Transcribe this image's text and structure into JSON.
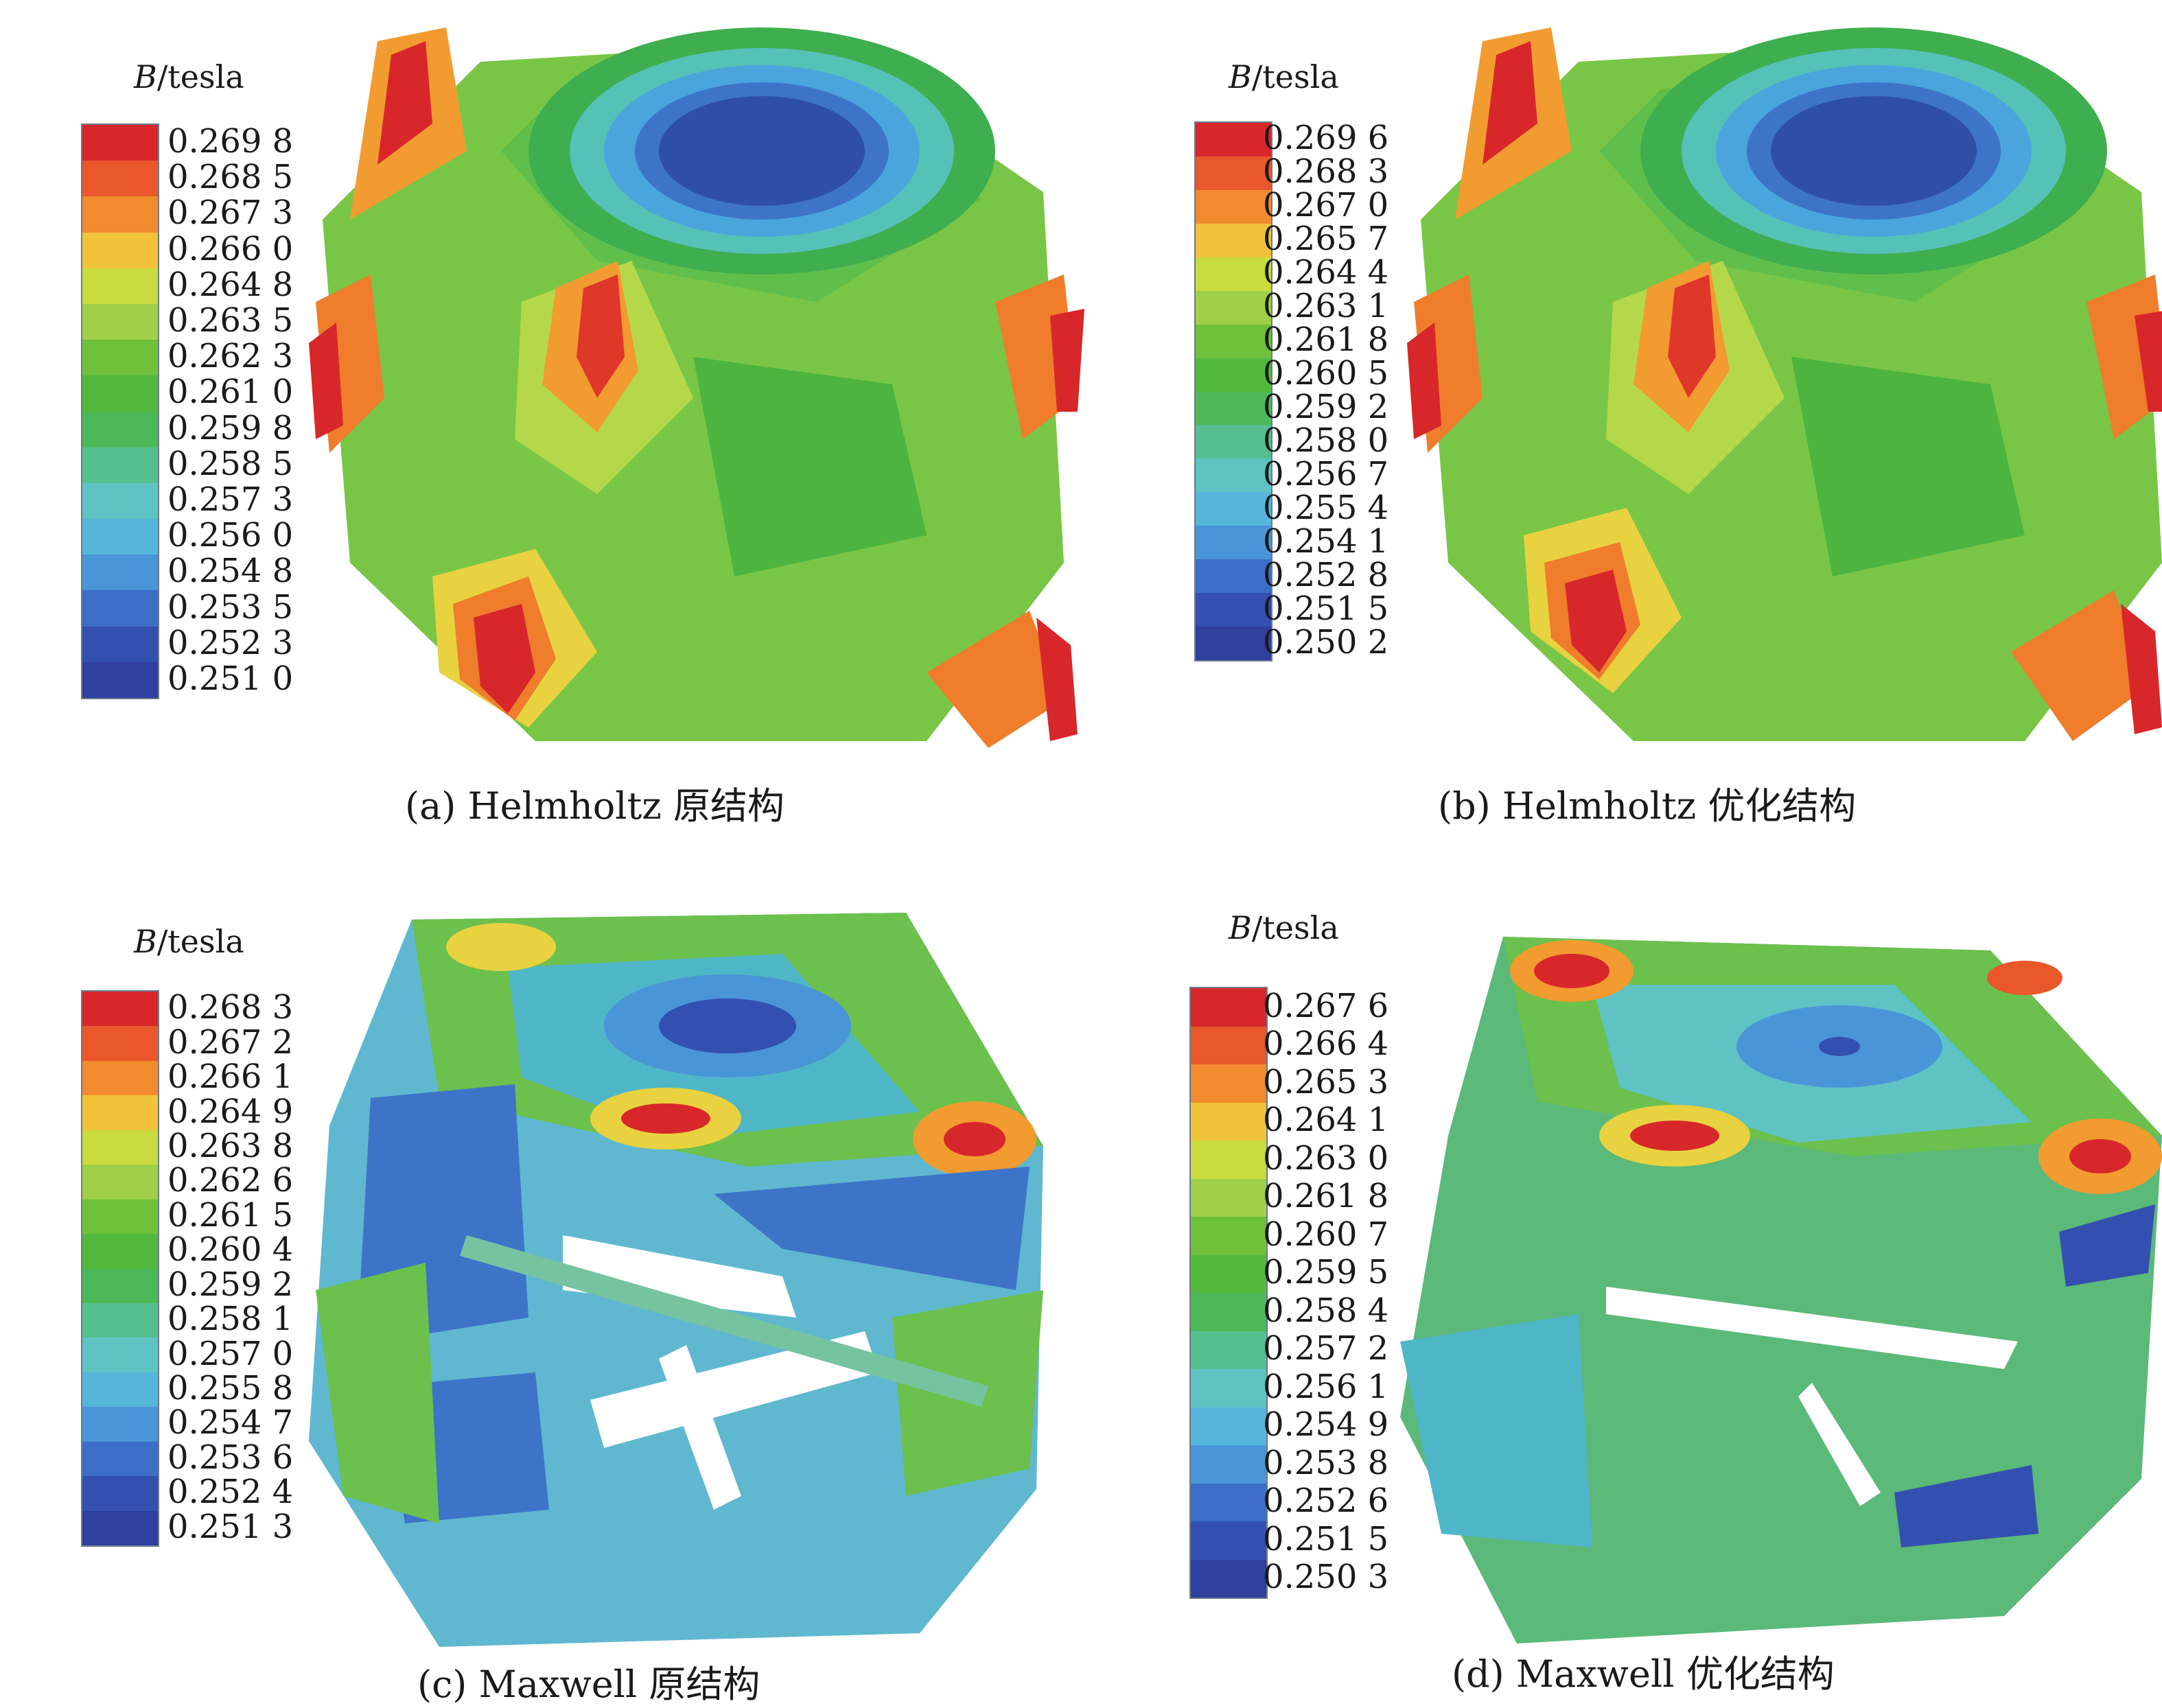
{
  "palette": [
    "#2e3f9e",
    "#3350b0",
    "#3b6ec6",
    "#4a95d8",
    "#55b6d9",
    "#5fc3c4",
    "#56be8f",
    "#4db858",
    "#52b93d",
    "#6fc13c",
    "#9fd047",
    "#c9db3e",
    "#f0c33a",
    "#f28a2e",
    "#e9572a",
    "#d8272a"
  ],
  "chart_data": [
    {
      "id": "a",
      "type": "heatmap",
      "unit_label": {
        "symbol": "B",
        "suffix": "/tesla"
      },
      "colorbar_ticks": [
        "0.269 8",
        "0.268 5",
        "0.267 3",
        "0.266 0",
        "0.264 8",
        "0.263 5",
        "0.262 3",
        "0.261 0",
        "0.259 8",
        "0.258 5",
        "0.257 3",
        "0.256 0",
        "0.254 8",
        "0.253 5",
        "0.252 3",
        "0.251 0"
      ],
      "range": [
        0.251,
        0.2698
      ],
      "caption": "(a) Helmholtz 原结构"
    },
    {
      "id": "b",
      "type": "heatmap",
      "unit_label": {
        "symbol": "B",
        "suffix": "/tesla"
      },
      "colorbar_ticks": [
        "0.269 6",
        "0.268 3",
        "0.267 0",
        "0.265 7",
        "0.264 4",
        "0.263 1",
        "0.261 8",
        "0.260 5",
        "0.259 2",
        "0.258 0",
        "0.256 7",
        "0.255 4",
        "0.254 1",
        "0.252 8",
        "0.251 5",
        "0.250 2"
      ],
      "range": [
        0.2502,
        0.2696
      ],
      "caption": "(b) Helmholtz 优化结构"
    },
    {
      "id": "c",
      "type": "heatmap",
      "unit_label": {
        "symbol": "B",
        "suffix": "/tesla"
      },
      "colorbar_ticks": [
        "0.268 3",
        "0.267 2",
        "0.266 1",
        "0.264 9",
        "0.263 8",
        "0.262 6",
        "0.261 5",
        "0.260 4",
        "0.259 2",
        "0.258 1",
        "0.257 0",
        "0.255 8",
        "0.254 7",
        "0.253 6",
        "0.252 4",
        "0.251 3"
      ],
      "range": [
        0.2513,
        0.2683
      ],
      "caption": "(c) Maxwell 原结构"
    },
    {
      "id": "d",
      "type": "heatmap",
      "unit_label": {
        "symbol": "B",
        "suffix": "/tesla"
      },
      "colorbar_ticks": [
        "0.267 6",
        "0.266 4",
        "0.265 3",
        "0.264 1",
        "0.263 0",
        "0.261 8",
        "0.260 7",
        "0.259 5",
        "0.258 4",
        "0.257 2",
        "0.256 1",
        "0.254 9",
        "0.253 8",
        "0.252 6",
        "0.251 5",
        "0.250 3"
      ],
      "range": [
        0.2503,
        0.2676
      ],
      "caption": "(d) Maxwell 优化结构"
    }
  ]
}
